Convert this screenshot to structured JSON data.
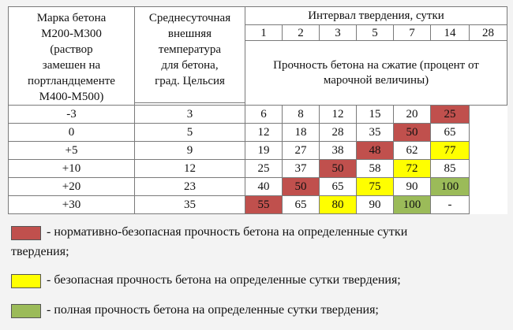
{
  "table": {
    "header": {
      "mark": [
        "Марка бетона",
        "М200-М300",
        "(раствор",
        "замешен на",
        "портландцементе",
        "М400-М500)"
      ],
      "temp": [
        "Среднесуточная",
        "внешняя",
        "температура",
        "для бетона,",
        "град. Цельсия"
      ],
      "interval": "Интервал твердения, сутки",
      "days": [
        "1",
        "2",
        "3",
        "5",
        "7",
        "14",
        "28"
      ],
      "strength": "Прочность бетона на сжатие (процент от марочной величины)"
    },
    "rows": [
      {
        "temp": "-3",
        "values": [
          "3",
          "6",
          "8",
          "12",
          "15",
          "20",
          "25"
        ],
        "colors": [
          "",
          "",
          "",
          "",
          "",
          "",
          "red"
        ]
      },
      {
        "temp": "0",
        "values": [
          "5",
          "12",
          "18",
          "28",
          "35",
          "50",
          "65"
        ],
        "colors": [
          "",
          "",
          "",
          "",
          "",
          "red",
          ""
        ]
      },
      {
        "temp": "+5",
        "values": [
          "9",
          "19",
          "27",
          "38",
          "48",
          "62",
          "77"
        ],
        "colors": [
          "",
          "",
          "",
          "",
          "red",
          "",
          "yellow"
        ]
      },
      {
        "temp": "+10",
        "values": [
          "12",
          "25",
          "37",
          "50",
          "58",
          "72",
          "85"
        ],
        "colors": [
          "",
          "",
          "",
          "red",
          "",
          "yellow",
          ""
        ]
      },
      {
        "temp": "+20",
        "values": [
          "23",
          "40",
          "50",
          "65",
          "75",
          "90",
          "100"
        ],
        "colors": [
          "",
          "",
          "red",
          "",
          "yellow",
          "",
          "green"
        ]
      },
      {
        "temp": "+30",
        "values": [
          "35",
          "55",
          "65",
          "80",
          "90",
          "100",
          "-"
        ],
        "colors": [
          "",
          "red",
          "",
          "yellow",
          "",
          "green",
          ""
        ]
      }
    ]
  },
  "colors": {
    "red": "#c0504d",
    "yellow": "#ffff00",
    "green": "#9bbb59"
  },
  "legend": [
    {
      "color": "red",
      "text": "- нормативно-безопасная прочность бетона на определенные сутки",
      "text2": "твердения;"
    },
    {
      "color": "yellow",
      "text": "- безопасная прочность бетона на определенные сутки твердения;"
    },
    {
      "color": "green",
      "text": "- полная прочность бетона на определенные сутки твердения;"
    }
  ]
}
